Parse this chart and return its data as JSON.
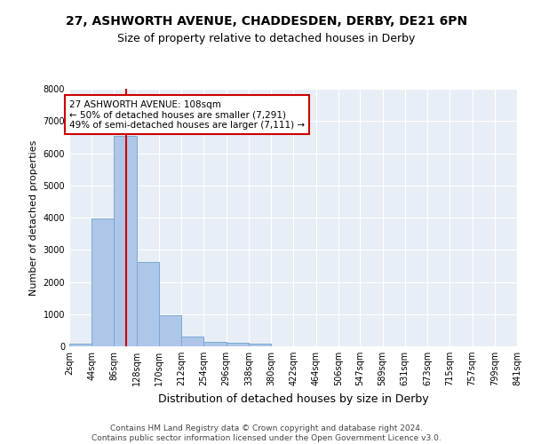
{
  "title1": "27, ASHWORTH AVENUE, CHADDESDEN, DERBY, DE21 6PN",
  "title2": "Size of property relative to detached houses in Derby",
  "xlabel": "Distribution of detached houses by size in Derby",
  "ylabel": "Number of detached properties",
  "bar_color": "#aec6e8",
  "bar_edge_color": "#7aaacf",
  "vline_color": "#cc0000",
  "vline_x": 108,
  "annotation_text": "27 ASHWORTH AVENUE: 108sqm\n← 50% of detached houses are smaller (7,291)\n49% of semi-detached houses are larger (7,111) →",
  "annotation_box_color": "#ffffff",
  "annotation_box_edge": "#cc0000",
  "bin_edges": [
    2,
    44,
    86,
    128,
    170,
    212,
    254,
    296,
    338,
    380,
    422,
    464,
    506,
    547,
    589,
    631,
    673,
    715,
    757,
    799,
    841
  ],
  "bin_counts": [
    80,
    3980,
    6550,
    2620,
    960,
    310,
    130,
    110,
    90,
    0,
    0,
    0,
    0,
    0,
    0,
    0,
    0,
    0,
    0,
    0
  ],
  "ylim": [
    0,
    8000
  ],
  "yticks": [
    0,
    1000,
    2000,
    3000,
    4000,
    5000,
    6000,
    7000,
    8000
  ],
  "bg_color": "#e8eef5",
  "grid_color": "#ffffff",
  "footer_text": "Contains HM Land Registry data © Crown copyright and database right 2024.\nContains public sector information licensed under the Open Government Licence v3.0.",
  "title1_fontsize": 10,
  "title2_fontsize": 9,
  "xlabel_fontsize": 9,
  "ylabel_fontsize": 8,
  "tick_fontsize": 7,
  "annotation_fontsize": 7.5,
  "footer_fontsize": 6.5
}
